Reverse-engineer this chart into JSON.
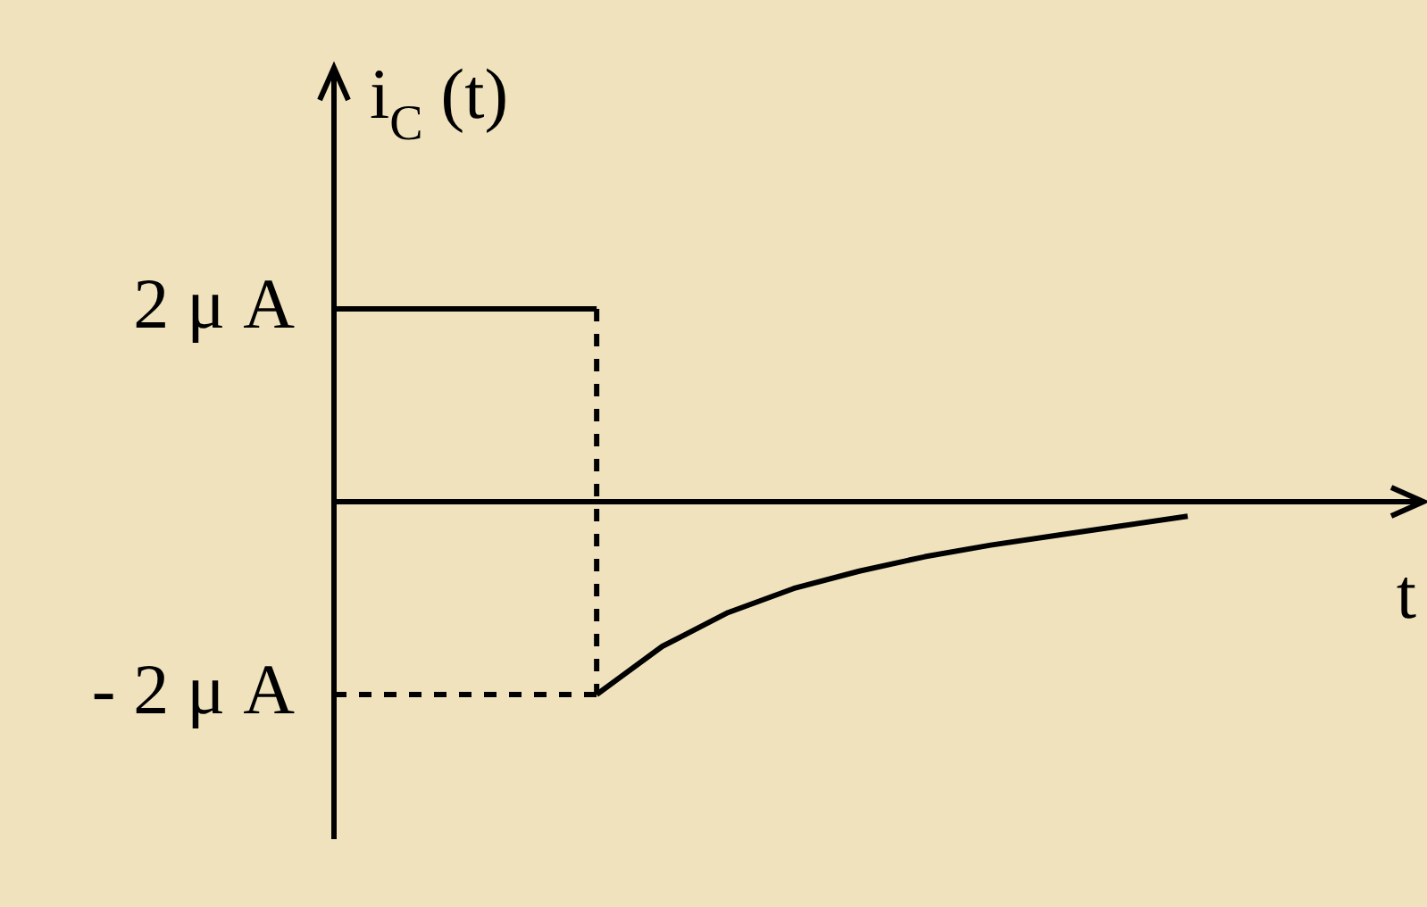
{
  "chart_data": {
    "type": "line",
    "ylabel": "i$_{C}$ (t)",
    "xlabel": "t",
    "tick_labels": "y",
    "grid": false,
    "legend": false,
    "marker": "none",
    "ylim": [
      -3.5,
      4.5
    ],
    "categories": [
      null,
      null,
      null,
      null,
      null,
      null,
      null,
      null,
      null,
      null,
      null,
      null,
      null,
      null
    ],
    "yticks": [
      {
        "value": 2,
        "label": "2 μ A"
      },
      {
        "value": -2,
        "label": "- 2 μ A"
      }
    ],
    "ref_lines": [
      {
        "axis": "y",
        "value": -2,
        "line_style": "dashed",
        "color": "#000000"
      }
    ],
    "series": [
      {
        "color": "#000000",
        "values": [
          2,
          2,
          2,
          2,
          2,
          null,
          null,
          null,
          null,
          null,
          null,
          null,
          null,
          null
        ]
      },
      {
        "color": "#000000",
        "values": [
          null,
          null,
          null,
          null,
          -2,
          -1.5,
          -1.15,
          -0.9,
          -0.72,
          -0.57,
          -0.45,
          -0.35,
          -0.25,
          -0.15
        ]
      }
    ]
  }
}
